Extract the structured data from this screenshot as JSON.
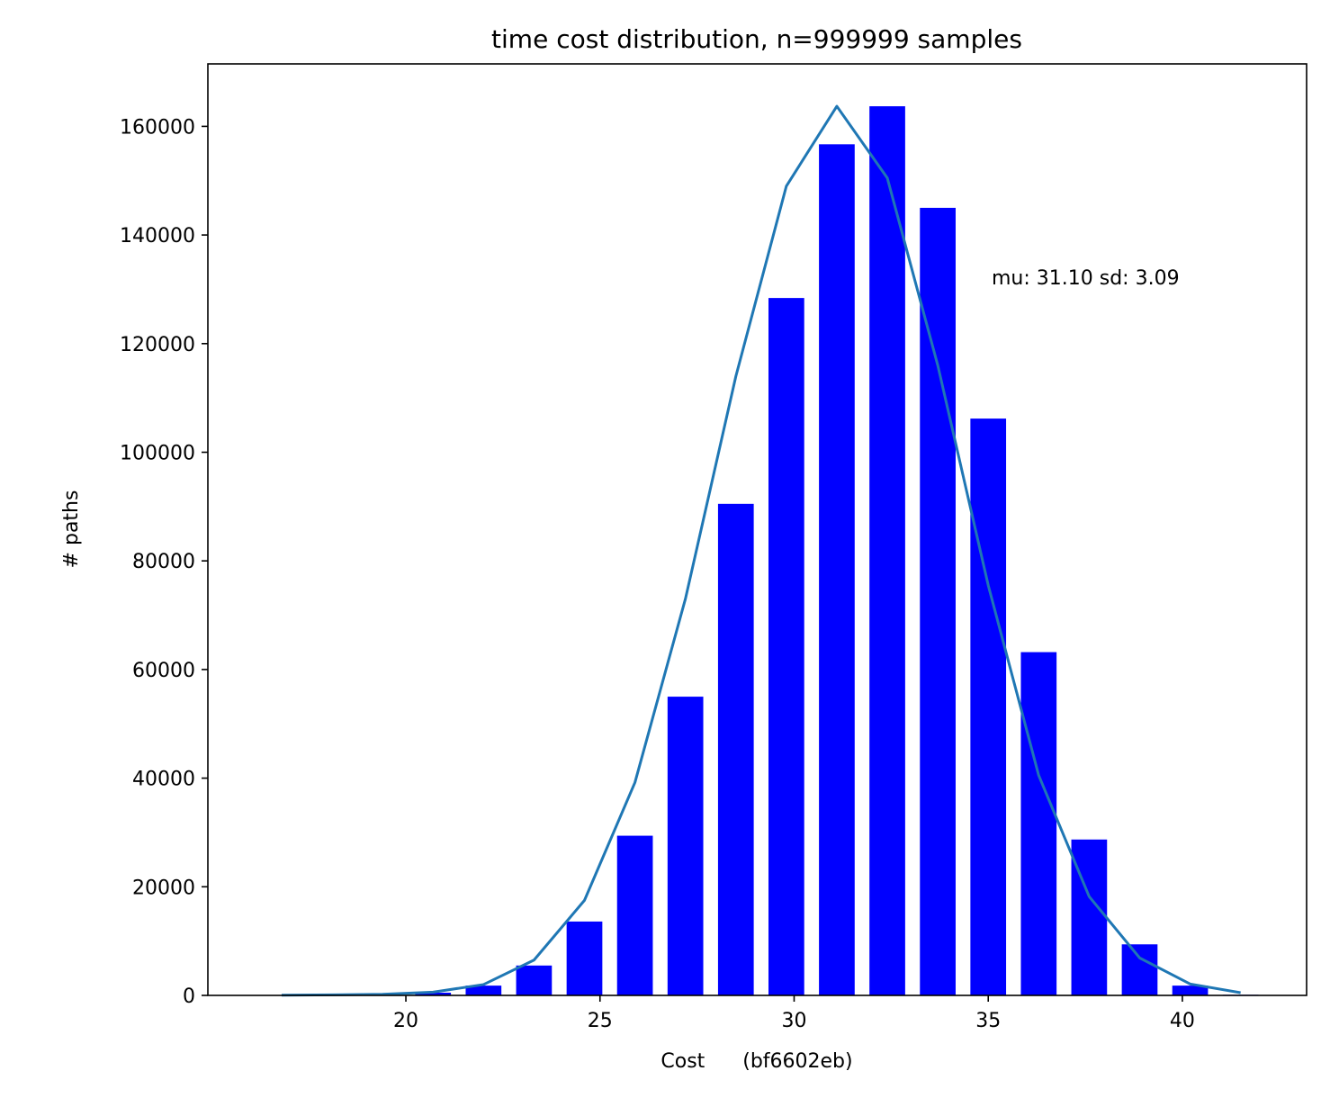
{
  "chart_data": {
    "type": "bar",
    "title": "time cost distribution, n=999999 samples",
    "xlabel": "Cost      (bf6602eb)",
    "ylabel": "# paths",
    "annotation": "mu: 31.10 sd: 3.09",
    "xlim": [
      14.9,
      43.2
    ],
    "ylim": [
      0,
      171500
    ],
    "xticks": [
      20,
      25,
      30,
      35,
      40
    ],
    "yticks": [
      0,
      20000,
      40000,
      60000,
      80000,
      100000,
      120000,
      140000,
      160000
    ],
    "grid": false,
    "bar_color": "#0000ff",
    "line_color": "#1f77b4",
    "bar_width": 0.92,
    "bars": {
      "x": [
        16.8,
        18.1,
        19.4,
        20.7,
        22.0,
        23.3,
        24.6,
        25.9,
        27.2,
        28.5,
        29.8,
        31.1,
        32.4,
        33.7,
        35.0,
        36.3,
        37.6,
        38.9,
        40.2,
        41.5
      ],
      "values": [
        20,
        100,
        180,
        500,
        1800,
        5500,
        13600,
        29400,
        55000,
        90500,
        128400,
        156700,
        163700,
        145000,
        106200,
        63200,
        28700,
        9400,
        1800,
        120
      ]
    },
    "series": [
      {
        "type": "line",
        "x": [
          16.8,
          18.1,
          19.4,
          20.7,
          22.0,
          23.3,
          24.6,
          25.9,
          27.2,
          28.5,
          29.8,
          31.1,
          32.4,
          33.7,
          35.0,
          36.3,
          37.6,
          38.9,
          40.2,
          41.5
        ],
        "values": [
          50,
          100,
          200,
          600,
          2000,
          6500,
          17500,
          39200,
          73000,
          114000,
          149000,
          163700,
          150500,
          116000,
          75500,
          40500,
          18200,
          6900,
          2100,
          500
        ]
      }
    ]
  }
}
